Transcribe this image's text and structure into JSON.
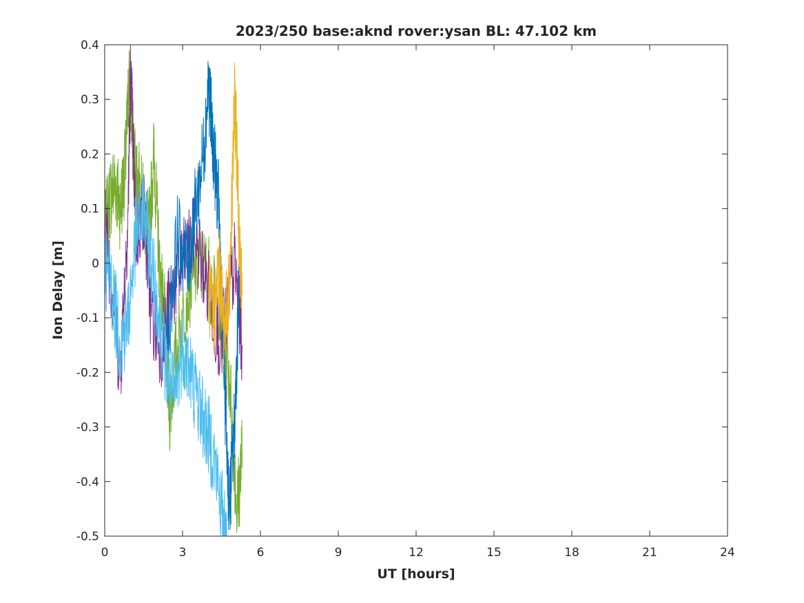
{
  "chart_data": {
    "type": "line",
    "title": "2023/250 base:aknd rover:ysan BL: 47.102 km",
    "xlabel": "UT [hours]",
    "ylabel": "Ion Delay [m]",
    "xlim": [
      0,
      24
    ],
    "ylim": [
      -0.5,
      0.4
    ],
    "xticks": [
      0,
      3,
      6,
      9,
      12,
      15,
      18,
      21,
      24
    ],
    "xtick_labels": [
      "0",
      "3",
      "6",
      "9",
      "12",
      "15",
      "18",
      "21",
      "24"
    ],
    "yticks": [
      -0.5,
      -0.4,
      -0.3,
      -0.2,
      -0.1,
      0,
      0.1,
      0.2,
      0.3,
      0.4
    ],
    "ytick_labels": [
      "-0.5",
      "-0.4",
      "-0.3",
      "-0.2",
      "-0.1",
      "0",
      "0.1",
      "0.2",
      "0.3",
      "0.4"
    ],
    "grid": false,
    "series": [
      {
        "color": "#77AC30",
        "x": [
          0.0,
          0.2,
          0.4,
          0.6,
          0.8,
          0.95,
          1.1,
          1.3,
          1.5,
          1.7,
          1.9,
          2.1,
          2.3,
          2.5,
          2.8,
          3.2,
          3.6,
          4.0,
          4.4,
          4.8,
          5.1,
          5.3
        ],
        "y": [
          0.05,
          0.12,
          0.15,
          0.1,
          0.18,
          0.35,
          0.2,
          0.15,
          0.1,
          0.05,
          0.2,
          0.0,
          -0.1,
          -0.27,
          -0.15,
          -0.05,
          0.0,
          -0.02,
          -0.1,
          -0.2,
          -0.45,
          -0.35
        ]
      },
      {
        "color": "#7E2F8E",
        "x": [
          0.0,
          0.3,
          0.6,
          0.9,
          1.0,
          1.2,
          1.5,
          1.8,
          2.2,
          2.6,
          3.0,
          3.5,
          4.0,
          4.5,
          5.0,
          5.3
        ],
        "y": [
          0.08,
          -0.05,
          -0.2,
          0.1,
          0.36,
          0.05,
          0.1,
          -0.1,
          -0.15,
          -0.05,
          0.0,
          0.05,
          -0.05,
          -0.15,
          0.0,
          -0.15
        ]
      },
      {
        "color": "#0072BD",
        "x": [
          2.4,
          2.8,
          3.2,
          3.5,
          3.8,
          4.0,
          4.2,
          4.4,
          4.6,
          4.8,
          5.0,
          5.2
        ],
        "y": [
          -0.15,
          0.05,
          0.0,
          0.1,
          0.2,
          0.33,
          0.2,
          0.1,
          -0.2,
          -0.45,
          -0.3,
          0.0
        ]
      },
      {
        "color": "#EDB120",
        "x": [
          4.0,
          4.2,
          4.4,
          4.6,
          4.8,
          4.9,
          5.0,
          5.1,
          5.2,
          5.3
        ],
        "y": [
          -0.05,
          -0.1,
          0.0,
          -0.12,
          -0.05,
          0.1,
          0.3,
          0.2,
          0.0,
          -0.05
        ]
      },
      {
        "color": "#4DBEEE",
        "x": [
          0.0,
          0.3,
          0.6,
          0.9,
          1.2,
          1.5,
          1.8,
          2.1,
          2.4,
          2.7,
          3.0,
          3.3,
          3.6,
          3.9,
          4.2,
          4.5,
          4.7
        ],
        "y": [
          0.0,
          -0.05,
          -0.15,
          -0.1,
          0.05,
          0.1,
          0.0,
          -0.1,
          -0.2,
          -0.25,
          -0.15,
          -0.2,
          -0.25,
          -0.3,
          -0.35,
          -0.45,
          -0.5
        ]
      }
    ]
  }
}
